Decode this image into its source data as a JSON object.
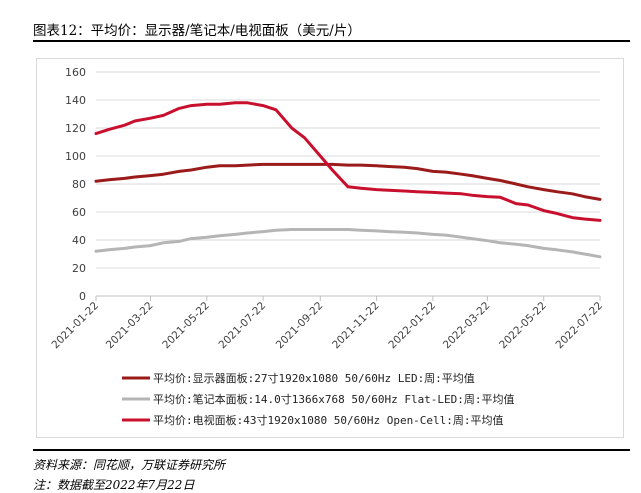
{
  "header": {
    "title": "图表12：平均价：显示器/笔记本/电视面板（美元/片）"
  },
  "footer": {
    "source": "资料来源：同花顺，万联证券研究所",
    "note": "注：数据截至2022年7月22日"
  },
  "chart_data": {
    "type": "line",
    "ylim": [
      0,
      160
    ],
    "yticks": [
      "0",
      "20",
      "40",
      "60",
      "80",
      "100",
      "120",
      "140",
      "160"
    ],
    "xticks": [
      "2021-01-22",
      "2021-03-22",
      "2021-05-22",
      "2021-07-22",
      "2021-09-22",
      "2021-11-22",
      "2022-01-22",
      "2022-03-22",
      "2022-05-22",
      "2022-07-22"
    ],
    "x": [
      "2021-01-22",
      "2021-02-05",
      "2021-02-22",
      "2021-03-05",
      "2021-03-22",
      "2021-04-05",
      "2021-04-22",
      "2021-05-05",
      "2021-05-22",
      "2021-06-05",
      "2021-06-22",
      "2021-07-05",
      "2021-07-22",
      "2021-08-05",
      "2021-08-22",
      "2021-09-05",
      "2021-09-22",
      "2021-10-05",
      "2021-10-22",
      "2021-11-05",
      "2021-11-22",
      "2021-12-05",
      "2021-12-22",
      "2022-01-05",
      "2022-01-22",
      "2022-02-05",
      "2022-02-22",
      "2022-03-05",
      "2022-03-22",
      "2022-04-05",
      "2022-04-22",
      "2022-05-05",
      "2022-05-22",
      "2022-06-05",
      "2022-06-22",
      "2022-07-05",
      "2022-07-22"
    ],
    "legend_position": "bottom",
    "series": [
      {
        "name": "平均价:显示器面板:27寸1920x1080 50/60Hz LED:周:平均值",
        "color": "#9b1b1b",
        "values": [
          82,
          83,
          84,
          85,
          86,
          87,
          89,
          90,
          92,
          93,
          93,
          93.5,
          94,
          94,
          94,
          94,
          94,
          94,
          93.5,
          93.5,
          93,
          92.5,
          92,
          91,
          89,
          88.5,
          87,
          86,
          84,
          82.5,
          80,
          78,
          76,
          74.5,
          73,
          71,
          69
        ]
      },
      {
        "name": "平均价:笔记本面板:14.0寸1366x768 50/60Hz Flat-LED:周:平均值",
        "color": "#b5b5b5",
        "values": [
          32,
          33,
          34,
          35,
          36,
          38,
          39,
          41,
          42,
          43,
          44,
          45,
          46,
          47,
          47.5,
          47.5,
          47.5,
          47.5,
          47.5,
          47,
          46.5,
          46,
          45.5,
          45,
          44,
          43.5,
          42,
          41,
          39.5,
          38,
          37,
          36,
          34,
          33,
          31.5,
          30,
          28
        ]
      },
      {
        "name": "平均价:电视面板:43寸1920x1080 50/60Hz Open-Cell:周:平均值",
        "color": "#c8102e",
        "values": [
          116,
          119,
          122,
          125,
          127,
          129,
          134,
          136,
          137,
          137,
          138,
          138,
          136,
          133,
          120,
          113,
          100,
          90,
          78,
          77,
          76,
          75.5,
          75,
          74.5,
          74,
          73.5,
          73,
          72,
          71,
          70.5,
          66,
          65,
          61,
          59,
          56,
          55,
          54
        ]
      }
    ]
  }
}
